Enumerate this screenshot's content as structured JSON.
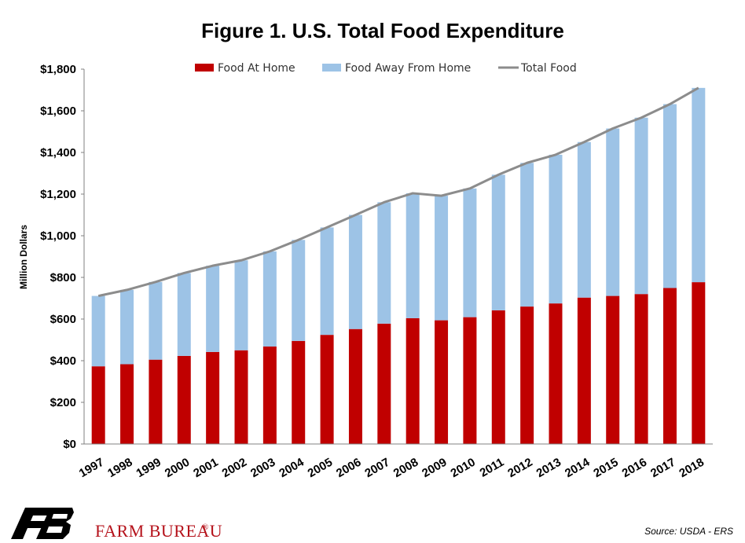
{
  "chart_data": {
    "type": "bar",
    "title": "Figure 1. U.S. Total Food Expenditure",
    "ylabel": "Million Dollars",
    "xlabel": "",
    "ylim": [
      0,
      1800
    ],
    "ytick_values": [
      0,
      200,
      400,
      600,
      800,
      1000,
      1200,
      1400,
      1600,
      1800
    ],
    "ytick_labels": [
      "$0",
      "$200",
      "$400",
      "$600",
      "$800",
      "$1,000",
      "$1,200",
      "$1,400",
      "$1,600",
      "$1,800"
    ],
    "categories": [
      "1997",
      "1998",
      "1999",
      "2000",
      "2001",
      "2002",
      "2003",
      "2004",
      "2005",
      "2006",
      "2007",
      "2008",
      "2009",
      "2010",
      "2011",
      "2012",
      "2013",
      "2014",
      "2015",
      "2016",
      "2017",
      "2018"
    ],
    "legend_placement": "top",
    "grid": false,
    "stacked": true,
    "series": [
      {
        "name": "Food At Home",
        "type": "bar",
        "color": "#c00000",
        "values": [
          373,
          383,
          405,
          423,
          442,
          450,
          468,
          495,
          524,
          552,
          578,
          604,
          594,
          609,
          642,
          660,
          675,
          703,
          711,
          720,
          749,
          777
        ]
      },
      {
        "name": "Food Away From Home",
        "type": "bar",
        "color": "#9dc3e6",
        "values": [
          338,
          357,
          373,
          398,
          414,
          432,
          457,
          485,
          516,
          548,
          583,
          600,
          598,
          618,
          651,
          690,
          714,
          747,
          804,
          847,
          883,
          933
        ]
      },
      {
        "name": "Total Food",
        "type": "line",
        "color": "#8c8c8c",
        "values": [
          711,
          740,
          778,
          821,
          856,
          882,
          925,
          980,
          1040,
          1100,
          1161,
          1204,
          1192,
          1227,
          1293,
          1350,
          1389,
          1450,
          1515,
          1567,
          1632,
          1710
        ]
      }
    ]
  },
  "footer": {
    "brand": "FARM BUREAU",
    "brand_mark": "®",
    "source": "Source: USDA - ERS"
  }
}
